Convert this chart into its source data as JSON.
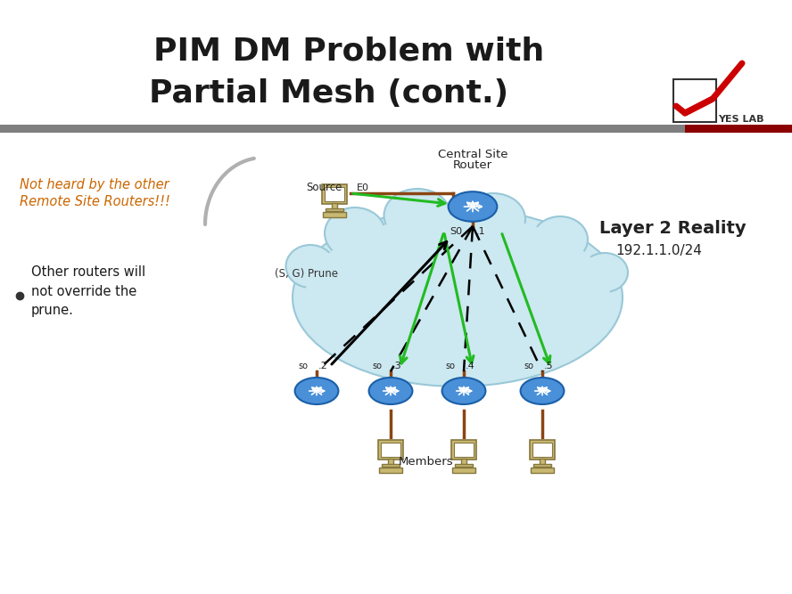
{
  "title_line1": "PIM DM Problem with",
  "title_line2": "Partial Mesh (cont.)",
  "title_fontsize": 26,
  "bg_color": "#ffffff",
  "header_bar_color1": "#7f7f7f",
  "header_bar_color2": "#8b0000",
  "text_not_heard": "Not heard by the other\nRemote Site Routers!!!",
  "text_not_heard_color": "#cc6600",
  "text_other_routers": "Other routers will\nnot override the\nprune.",
  "bullet_color": "#333333",
  "central_router_label1": "Central Site",
  "central_router_label2": "Router",
  "source_label": "Source",
  "e0_label": "E0",
  "layer2_text": "Layer 2 Reality",
  "subnet_text": "192.1.1.0/24",
  "prune_label": "(S, G) Prune",
  "members_label": "Members",
  "router_color_blue": "#4a90d9",
  "router_color_dark": "#1a5fa8",
  "cloud_color": "#cce8f0",
  "cloud_edge_color": "#99c8d8",
  "line_color_brown": "#8B4513",
  "arrow_green": "#22bb22",
  "yes_lab_text": "YES LAB",
  "figw": 8.88,
  "figh": 6.67,
  "dpi": 100
}
